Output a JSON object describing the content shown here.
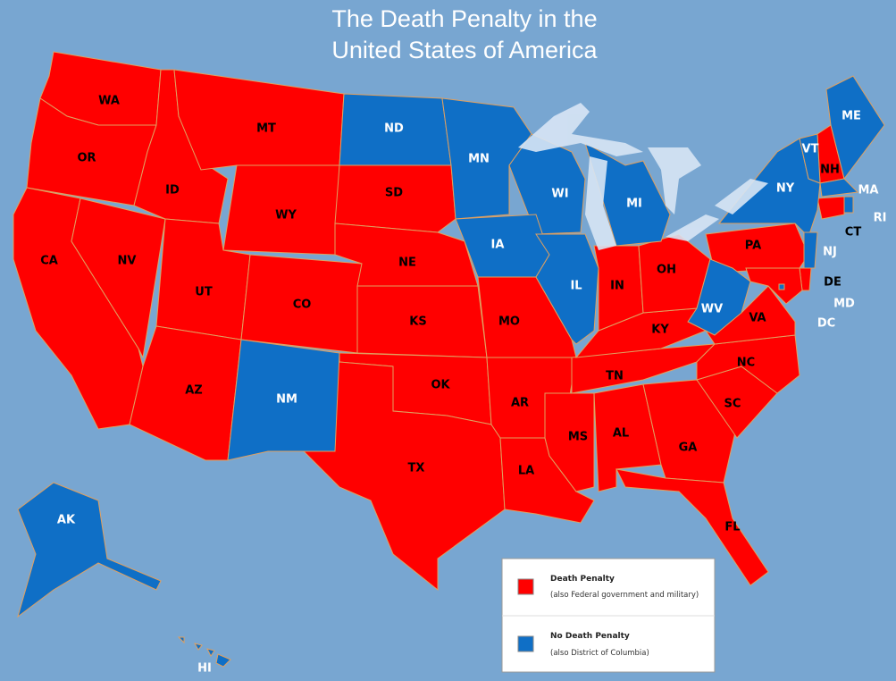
{
  "title": [
    "The Death Penalty in the",
    "United States of America"
  ],
  "legend": {
    "items": [
      {
        "label": "Death Penalty",
        "note": "(also Federal government and military)",
        "color": "#ff0000",
        "states": [
          "WA",
          "OR",
          "CA",
          "NV",
          "ID",
          "MT",
          "WY",
          "UT",
          "AZ",
          "CO",
          "SD",
          "NE",
          "KS",
          "OK",
          "TX",
          "MO",
          "AR",
          "LA",
          "MS",
          "AL",
          "TN",
          "KY",
          "IN",
          "OH",
          "GA",
          "SC",
          "NC",
          "VA",
          "FL",
          "NH",
          "PA",
          "DE",
          "MD",
          "CT"
        ]
      },
      {
        "label": "No Death Penalty",
        "note": "(also District of Columbia)",
        "color": "#0f6fc6",
        "states": [
          "ND",
          "MN",
          "WI",
          "MI",
          "IA",
          "IL",
          "NM",
          "WV",
          "NY",
          "VT",
          "ME",
          "MA",
          "RI",
          "NJ",
          "AK",
          "HI",
          "DC"
        ]
      }
    ]
  }
}
